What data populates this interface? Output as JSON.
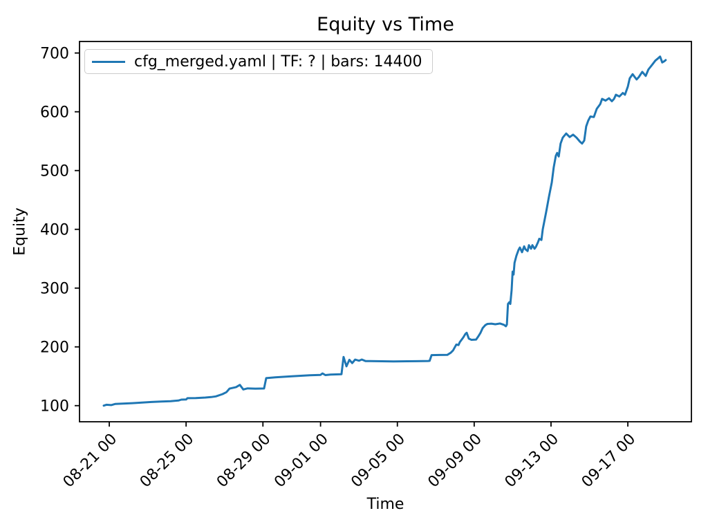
{
  "chart_data": {
    "type": "line",
    "title": "Equity vs Time",
    "xlabel": "Time",
    "ylabel": "Equity",
    "grid": false,
    "legend_position": "upper left",
    "legend": [
      {
        "label": "cfg_merged.yaml | TF: ? | bars: 14400",
        "color": "#1f77b4"
      }
    ],
    "x_axis_note": "x values are days after the 08-21 00 tick",
    "xlim": [
      -1.55,
      30.31
    ],
    "ylim": [
      72.6,
      719.6
    ],
    "x_ticks": [
      {
        "label": "08-21 00",
        "day": 0
      },
      {
        "label": "08-25 00",
        "day": 4
      },
      {
        "label": "08-29 00",
        "day": 8
      },
      {
        "label": "09-01 00",
        "day": 11
      },
      {
        "label": "09-05 00",
        "day": 15
      },
      {
        "label": "09-09 00",
        "day": 19
      },
      {
        "label": "09-13 00",
        "day": 23
      },
      {
        "label": "09-17 00",
        "day": 27
      }
    ],
    "y_ticks": [
      100,
      200,
      300,
      400,
      500,
      600,
      700
    ],
    "series": [
      {
        "name": "cfg_merged.yaml | TF: ? | bars: 14400",
        "color": "#1f77b4",
        "linewidth": 3,
        "points": [
          [
            -0.29,
            100.0
          ],
          [
            -0.15,
            101.5
          ],
          [
            0.1,
            101.0
          ],
          [
            0.3,
            102.8
          ],
          [
            0.7,
            103.4
          ],
          [
            1.2,
            104.2
          ],
          [
            1.7,
            105.2
          ],
          [
            2.2,
            106.2
          ],
          [
            2.7,
            106.9
          ],
          [
            3.2,
            107.6
          ],
          [
            3.6,
            108.7
          ],
          [
            3.75,
            110.2
          ],
          [
            4.0,
            110.5
          ],
          [
            4.07,
            112.7
          ],
          [
            4.5,
            113.0
          ],
          [
            5.0,
            113.8
          ],
          [
            5.3,
            114.6
          ],
          [
            5.55,
            115.8
          ],
          [
            5.9,
            119.6
          ],
          [
            6.1,
            123.0
          ],
          [
            6.26,
            129.0
          ],
          [
            6.6,
            131.5
          ],
          [
            6.8,
            135.3
          ],
          [
            6.98,
            127.5
          ],
          [
            7.2,
            129.4
          ],
          [
            7.6,
            128.9
          ],
          [
            8.06,
            129.2
          ],
          [
            8.17,
            146.8
          ],
          [
            8.64,
            148.2
          ],
          [
            9.5,
            150.0
          ],
          [
            10.44,
            151.8
          ],
          [
            11.0,
            152.3
          ],
          [
            11.1,
            154.8
          ],
          [
            11.25,
            152.0
          ],
          [
            11.52,
            152.9
          ],
          [
            12.09,
            153.5
          ],
          [
            12.2,
            183.0
          ],
          [
            12.35,
            167.0
          ],
          [
            12.5,
            178.0
          ],
          [
            12.65,
            172.5
          ],
          [
            12.8,
            178.3
          ],
          [
            13.0,
            176.5
          ],
          [
            13.15,
            178.5
          ],
          [
            13.35,
            175.8
          ],
          [
            13.6,
            175.8
          ],
          [
            14.2,
            175.5
          ],
          [
            14.8,
            175.3
          ],
          [
            15.5,
            175.5
          ],
          [
            16.0,
            175.6
          ],
          [
            16.6,
            176.0
          ],
          [
            16.68,
            176.2
          ],
          [
            16.78,
            186.0
          ],
          [
            17.2,
            186.2
          ],
          [
            17.6,
            186.3
          ],
          [
            17.78,
            190.0
          ],
          [
            17.9,
            194.0
          ],
          [
            18.0,
            200.0
          ],
          [
            18.07,
            204.0
          ],
          [
            18.18,
            203.0
          ],
          [
            18.25,
            208.0
          ],
          [
            18.43,
            216.0
          ],
          [
            18.54,
            222.0
          ],
          [
            18.61,
            224.0
          ],
          [
            18.72,
            214.0
          ],
          [
            18.86,
            212.0
          ],
          [
            19.1,
            212.5
          ],
          [
            19.22,
            218.0
          ],
          [
            19.33,
            224.0
          ],
          [
            19.44,
            232.0
          ],
          [
            19.58,
            237.0
          ],
          [
            19.69,
            239.0
          ],
          [
            19.9,
            239.5
          ],
          [
            20.1,
            238.5
          ],
          [
            20.35,
            239.8
          ],
          [
            20.55,
            237.5
          ],
          [
            20.65,
            235.0
          ],
          [
            20.7,
            238.0
          ],
          [
            20.76,
            273.0
          ],
          [
            20.83,
            276.0
          ],
          [
            20.88,
            273.0
          ],
          [
            20.95,
            297.0
          ],
          [
            21.0,
            328.0
          ],
          [
            21.05,
            323.0
          ],
          [
            21.1,
            343.0
          ],
          [
            21.2,
            355.0
          ],
          [
            21.31,
            365.0
          ],
          [
            21.38,
            369.0
          ],
          [
            21.49,
            361.0
          ],
          [
            21.6,
            371.0
          ],
          [
            21.67,
            366.0
          ],
          [
            21.78,
            363.0
          ],
          [
            21.85,
            373.0
          ],
          [
            21.96,
            367.0
          ],
          [
            22.03,
            373.0
          ],
          [
            22.14,
            367.0
          ],
          [
            22.21,
            370.0
          ],
          [
            22.32,
            378.0
          ],
          [
            22.39,
            384.0
          ],
          [
            22.5,
            382.0
          ],
          [
            22.57,
            400.0
          ],
          [
            22.75,
            430.0
          ],
          [
            22.89,
            455.0
          ],
          [
            23.04,
            480.0
          ],
          [
            23.14,
            505.0
          ],
          [
            23.25,
            525.0
          ],
          [
            23.32,
            530.0
          ],
          [
            23.4,
            524.0
          ],
          [
            23.5,
            546.0
          ],
          [
            23.61,
            556.0
          ],
          [
            23.79,
            563.0
          ],
          [
            23.97,
            557.0
          ],
          [
            24.15,
            561.0
          ],
          [
            24.33,
            556.0
          ],
          [
            24.51,
            549.0
          ],
          [
            24.62,
            546.0
          ],
          [
            24.73,
            551.0
          ],
          [
            24.83,
            575.0
          ],
          [
            24.94,
            585.0
          ],
          [
            25.05,
            592.0
          ],
          [
            25.23,
            591.0
          ],
          [
            25.38,
            605.0
          ],
          [
            25.56,
            613.0
          ],
          [
            25.66,
            622.0
          ],
          [
            25.84,
            619.0
          ],
          [
            26.02,
            623.0
          ],
          [
            26.17,
            618.0
          ],
          [
            26.28,
            622.0
          ],
          [
            26.38,
            629.0
          ],
          [
            26.56,
            626.0
          ],
          [
            26.74,
            632.0
          ],
          [
            26.85,
            629.0
          ],
          [
            27.0,
            643.0
          ],
          [
            27.1,
            657.0
          ],
          [
            27.25,
            664.0
          ],
          [
            27.36,
            659.0
          ],
          [
            27.46,
            655.0
          ],
          [
            27.57,
            659.0
          ],
          [
            27.75,
            668.0
          ],
          [
            27.93,
            661.0
          ],
          [
            28.07,
            672.0
          ],
          [
            28.29,
            681.0
          ],
          [
            28.43,
            687.0
          ],
          [
            28.58,
            691.0
          ],
          [
            28.68,
            694.0
          ],
          [
            28.79,
            684.0
          ],
          [
            28.9,
            686.0
          ],
          [
            28.97,
            688.0
          ]
        ]
      }
    ]
  }
}
